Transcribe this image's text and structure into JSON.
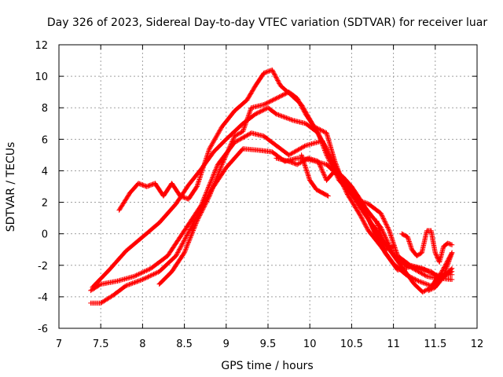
{
  "chart_data": {
    "type": "scatter",
    "title": "Day 326 of 2023, Sidereal Day-to-day VTEC variation (SDTVAR) for receiver luar",
    "xlabel": "GPS time / hours",
    "ylabel": "SDTVAR / TECUs",
    "xlim": [
      7,
      12
    ],
    "ylim": [
      -6,
      12
    ],
    "x_ticks": [
      "7",
      "7.5",
      "8",
      "8.5",
      "9",
      "9.5",
      "10",
      "10.5",
      "11",
      "11.5",
      "12"
    ],
    "y_ticks": [
      "-6",
      "-4",
      "-2",
      "0",
      "2",
      "4",
      "6",
      "8",
      "10",
      "12"
    ],
    "grid": true,
    "marker": "+",
    "color": "#ff0000",
    "series": [
      {
        "name": "trace-1",
        "points": [
          [
            7.38,
            -4.4
          ],
          [
            7.5,
            -4.4
          ],
          [
            7.65,
            -3.9
          ],
          [
            7.8,
            -3.3
          ],
          [
            8.0,
            -2.9
          ],
          [
            8.2,
            -2.4
          ],
          [
            8.4,
            -1.4
          ],
          [
            8.6,
            0.6
          ],
          [
            8.8,
            2.6
          ],
          [
            9.0,
            4.2
          ],
          [
            9.2,
            5.4
          ],
          [
            9.4,
            5.3
          ],
          [
            9.55,
            5.2
          ],
          [
            9.7,
            4.6
          ],
          [
            9.85,
            4.8
          ],
          [
            10.0,
            4.7
          ],
          [
            10.2,
            4.4
          ],
          [
            10.4,
            3.4
          ],
          [
            10.55,
            2.2
          ],
          [
            10.7,
            1.9
          ],
          [
            10.85,
            1.3
          ],
          [
            10.95,
            0.2
          ],
          [
            11.05,
            -1.4
          ],
          [
            11.2,
            -2.0
          ],
          [
            11.35,
            -2.2
          ],
          [
            11.5,
            -2.6
          ],
          [
            11.6,
            -2.7
          ],
          [
            11.7,
            -1.2
          ]
        ]
      },
      {
        "name": "trace-2",
        "points": [
          [
            7.38,
            -3.6
          ],
          [
            7.5,
            -3.2
          ],
          [
            7.7,
            -3.0
          ],
          [
            7.9,
            -2.7
          ],
          [
            8.1,
            -2.2
          ],
          [
            8.3,
            -1.4
          ],
          [
            8.5,
            0.2
          ],
          [
            8.7,
            1.8
          ],
          [
            8.9,
            4.4
          ],
          [
            9.1,
            5.8
          ],
          [
            9.3,
            6.4
          ],
          [
            9.45,
            6.2
          ],
          [
            9.6,
            5.6
          ],
          [
            9.75,
            5.0
          ],
          [
            9.95,
            5.6
          ],
          [
            10.15,
            5.9
          ],
          [
            10.3,
            4.2
          ],
          [
            10.45,
            2.5
          ],
          [
            10.6,
            1.2
          ],
          [
            10.7,
            0.2
          ],
          [
            10.85,
            -0.8
          ],
          [
            11.0,
            -1.9
          ],
          [
            11.15,
            -2.6
          ],
          [
            11.3,
            -3.0
          ],
          [
            11.45,
            -3.3
          ],
          [
            11.55,
            -3.0
          ],
          [
            11.7,
            -2.2
          ]
        ]
      },
      {
        "name": "trace-3",
        "points": [
          [
            7.4,
            -3.4
          ],
          [
            7.6,
            -2.3
          ],
          [
            7.8,
            -1.1
          ],
          [
            8.0,
            -0.2
          ],
          [
            8.2,
            0.7
          ],
          [
            8.4,
            1.9
          ],
          [
            8.55,
            3.1
          ],
          [
            8.7,
            4.1
          ],
          [
            8.85,
            5.2
          ],
          [
            9.0,
            6.0
          ],
          [
            9.2,
            7.0
          ],
          [
            9.35,
            7.6
          ],
          [
            9.5,
            8.0
          ],
          [
            9.6,
            7.6
          ],
          [
            9.8,
            7.2
          ],
          [
            9.95,
            7.0
          ],
          [
            10.1,
            6.4
          ],
          [
            10.2,
            5.0
          ],
          [
            10.35,
            3.4
          ],
          [
            10.5,
            2.5
          ],
          [
            10.65,
            1.3
          ],
          [
            10.8,
            0.2
          ],
          [
            10.95,
            -1.0
          ],
          [
            11.1,
            -2.1
          ],
          [
            11.25,
            -3.2
          ],
          [
            11.35,
            -3.7
          ],
          [
            11.45,
            -3.4
          ],
          [
            11.55,
            -2.6
          ],
          [
            11.7,
            -2.6
          ]
        ]
      },
      {
        "name": "trace-4",
        "points": [
          [
            7.72,
            1.5
          ],
          [
            7.85,
            2.6
          ],
          [
            7.95,
            3.2
          ],
          [
            8.05,
            3.0
          ],
          [
            8.15,
            3.2
          ],
          [
            8.25,
            2.4
          ],
          [
            8.35,
            3.2
          ],
          [
            8.45,
            2.4
          ],
          [
            8.55,
            2.2
          ],
          [
            8.65,
            3.0
          ],
          [
            8.8,
            5.4
          ],
          [
            8.95,
            6.8
          ],
          [
            9.1,
            7.8
          ],
          [
            9.25,
            8.5
          ],
          [
            9.35,
            9.4
          ],
          [
            9.45,
            10.2
          ],
          [
            9.55,
            10.4
          ],
          [
            9.65,
            9.4
          ],
          [
            9.78,
            8.8
          ],
          [
            9.9,
            8.2
          ],
          [
            10.05,
            6.8
          ],
          [
            10.2,
            5.4
          ],
          [
            10.3,
            4.3
          ],
          [
            10.45,
            3.0
          ],
          [
            10.6,
            2.0
          ],
          [
            10.75,
            0.4
          ],
          [
            10.9,
            -1.2
          ],
          [
            11.05,
            -2.3
          ],
          [
            11.2,
            -2.1
          ],
          [
            11.3,
            -2.4
          ],
          [
            11.4,
            -2.7
          ],
          [
            11.5,
            -2.8
          ],
          [
            11.7,
            -2.9
          ]
        ]
      },
      {
        "name": "trace-5",
        "points": [
          [
            8.2,
            -3.2
          ],
          [
            8.35,
            -2.4
          ],
          [
            8.5,
            -1.2
          ],
          [
            8.65,
            0.8
          ],
          [
            8.8,
            2.4
          ],
          [
            8.95,
            4.4
          ],
          [
            9.1,
            6.2
          ],
          [
            9.2,
            6.5
          ],
          [
            9.3,
            8.0
          ],
          [
            9.45,
            8.2
          ],
          [
            9.6,
            8.6
          ],
          [
            9.75,
            9.0
          ],
          [
            9.85,
            8.6
          ],
          [
            9.95,
            7.6
          ],
          [
            10.05,
            6.8
          ],
          [
            10.2,
            6.4
          ],
          [
            10.3,
            4.6
          ],
          [
            10.4,
            3.2
          ],
          [
            10.55,
            2.5
          ],
          [
            10.7,
            1.4
          ],
          [
            10.85,
            0.4
          ],
          [
            11.0,
            -1.3
          ],
          [
            11.15,
            -2.0
          ],
          [
            11.3,
            -2.2
          ],
          [
            11.45,
            -2.4
          ],
          [
            11.55,
            -2.8
          ],
          [
            11.7,
            -2.4
          ]
        ]
      },
      {
        "name": "trace-6",
        "points": [
          [
            9.6,
            4.8
          ],
          [
            9.75,
            4.6
          ],
          [
            9.85,
            4.4
          ],
          [
            9.98,
            4.8
          ],
          [
            10.1,
            4.6
          ],
          [
            10.2,
            3.4
          ],
          [
            10.3,
            4.0
          ],
          [
            10.4,
            3.6
          ],
          [
            10.5,
            3.0
          ],
          [
            10.6,
            2.2
          ],
          [
            10.7,
            1.0
          ],
          [
            10.8,
            -0.2
          ],
          [
            10.9,
            -1.0
          ],
          [
            11.0,
            -0.8
          ]
        ]
      },
      {
        "name": "trace-7",
        "points": [
          [
            9.9,
            5.0
          ],
          [
            9.95,
            4.2
          ],
          [
            10.0,
            3.4
          ],
          [
            10.08,
            2.8
          ],
          [
            10.15,
            2.6
          ],
          [
            10.22,
            2.4
          ]
        ]
      },
      {
        "name": "trace-8",
        "points": [
          [
            10.8,
            0.8
          ],
          [
            10.88,
            -0.6
          ],
          [
            10.95,
            -0.8
          ]
        ]
      },
      {
        "name": "trace-9",
        "points": [
          [
            11.1,
            0
          ],
          [
            11.17,
            -0.2
          ],
          [
            11.22,
            -1.0
          ],
          [
            11.28,
            -1.4
          ],
          [
            11.34,
            -1.2
          ],
          [
            11.4,
            0.2
          ],
          [
            11.45,
            0.2
          ],
          [
            11.5,
            -1.2
          ],
          [
            11.55,
            -1.8
          ],
          [
            11.6,
            -0.8
          ],
          [
            11.65,
            -0.6
          ],
          [
            11.7,
            -0.7
          ]
        ]
      },
      {
        "name": "trace-10",
        "points": [
          [
            11.5,
            -3.0
          ],
          [
            11.56,
            -2.6
          ],
          [
            11.62,
            -2.0
          ],
          [
            11.66,
            -1.6
          ],
          [
            11.7,
            -1.2
          ]
        ]
      },
      {
        "name": "trace-11",
        "points": [
          [
            11.42,
            -3.6
          ],
          [
            11.5,
            -3.4
          ],
          [
            11.56,
            -3.0
          ],
          [
            11.62,
            -2.6
          ]
        ]
      }
    ]
  }
}
